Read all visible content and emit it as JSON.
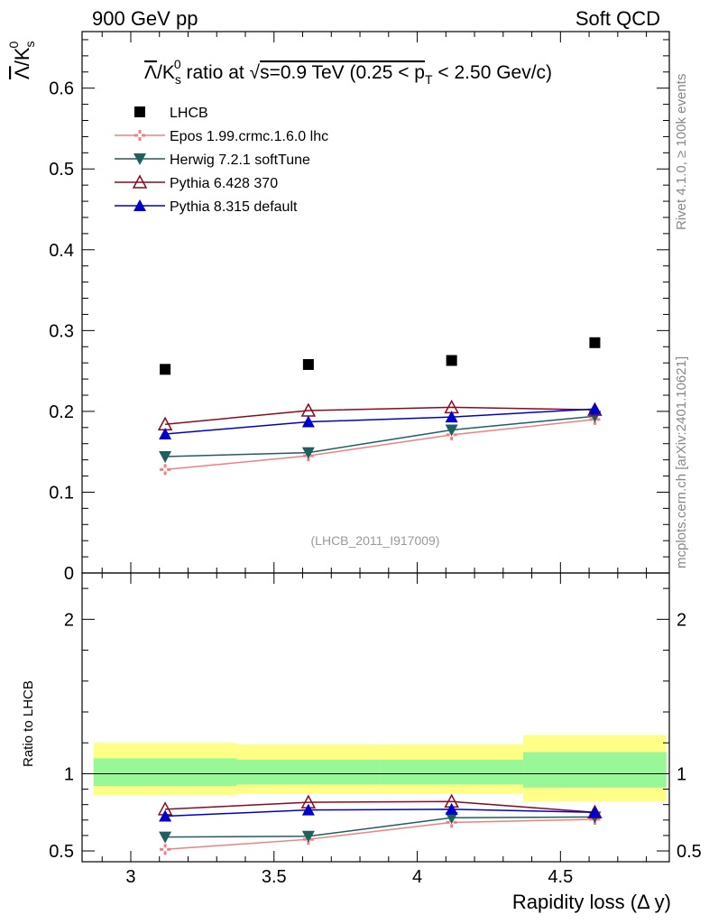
{
  "header": {
    "left": "900 GeV pp",
    "right": "Soft QCD"
  },
  "side_labels": {
    "rivet": "Rivet 4.1.0, ≥ 100k events",
    "mcplots": "mcplots.cern.ch [arXiv:2401.10621]"
  },
  "chart_data": {
    "type": "line",
    "title": {
      "lambda": "Λ",
      "slash_k": "/K",
      "sub_s": "s",
      "sup_0": "0",
      "ratio_at": " ratio at ",
      "sqrt": "√",
      "s_energy": "s=0.9 TeV (0.25 < p",
      "sub_t": "T",
      "range_end": " < 2.50 Gev/c)"
    },
    "ylabel": {
      "lambda": "Λ",
      "slash_k": "/K",
      "sub_s": "s",
      "sup_0": "0"
    },
    "xlabel": "Rapidity loss (Δ y)",
    "ratio_ylabel": "Ratio to LHCB",
    "watermark": "(LHCB_2011_I917009)",
    "xlim": [
      2.83,
      4.88
    ],
    "ylim": [
      0,
      0.67
    ],
    "ratio_ylim": [
      0.43,
      2.3
    ],
    "x_ticks": [
      "3",
      "3.5",
      "4",
      "4.5"
    ],
    "y_ticks": [
      "0",
      "0.1",
      "0.2",
      "0.3",
      "0.4",
      "0.5",
      "0.6"
    ],
    "ratio_y_ticks": [
      "0.5",
      "1",
      "2"
    ],
    "x": [
      3.12,
      3.62,
      4.12,
      4.62
    ],
    "bin_edges": [
      2.87,
      3.37,
      3.87,
      4.37,
      4.87
    ],
    "data": {
      "name": "LHCB",
      "values": [
        0.252,
        0.258,
        0.263,
        0.285
      ]
    },
    "band_inner": [
      [
        0.92,
        1.1
      ],
      [
        0.93,
        1.09
      ],
      [
        0.93,
        1.09
      ],
      [
        0.91,
        1.14
      ]
    ],
    "band_outer": [
      [
        0.86,
        1.2
      ],
      [
        0.87,
        1.19
      ],
      [
        0.87,
        1.19
      ],
      [
        0.82,
        1.25
      ]
    ],
    "series": [
      {
        "name": "Epos 1.99.crmc.1.6.0 lhc",
        "color": "#f08080",
        "marker": "cross",
        "values": [
          0.128,
          0.145,
          0.171,
          0.19
        ],
        "ratio": [
          0.51,
          0.575,
          0.685,
          0.705
        ]
      },
      {
        "name": "Herwig 7.2.1 softTune",
        "color": "#1f5f5f",
        "marker": "triangle-down",
        "values": [
          0.144,
          0.149,
          0.177,
          0.194
        ],
        "ratio": [
          0.59,
          0.595,
          0.715,
          0.72
        ]
      },
      {
        "name": "Pythia 6.428 370",
        "color": "#8b0a1e",
        "marker": "triangle-open",
        "values": [
          0.184,
          0.201,
          0.205,
          0.202
        ],
        "ratio": [
          0.77,
          0.815,
          0.82,
          0.75
        ]
      },
      {
        "name": "Pythia 8.315 default",
        "color": "#0000cc",
        "marker": "triangle-up",
        "values": [
          0.172,
          0.187,
          0.193,
          0.203
        ],
        "ratio": [
          0.725,
          0.765,
          0.77,
          0.75
        ]
      }
    ]
  }
}
